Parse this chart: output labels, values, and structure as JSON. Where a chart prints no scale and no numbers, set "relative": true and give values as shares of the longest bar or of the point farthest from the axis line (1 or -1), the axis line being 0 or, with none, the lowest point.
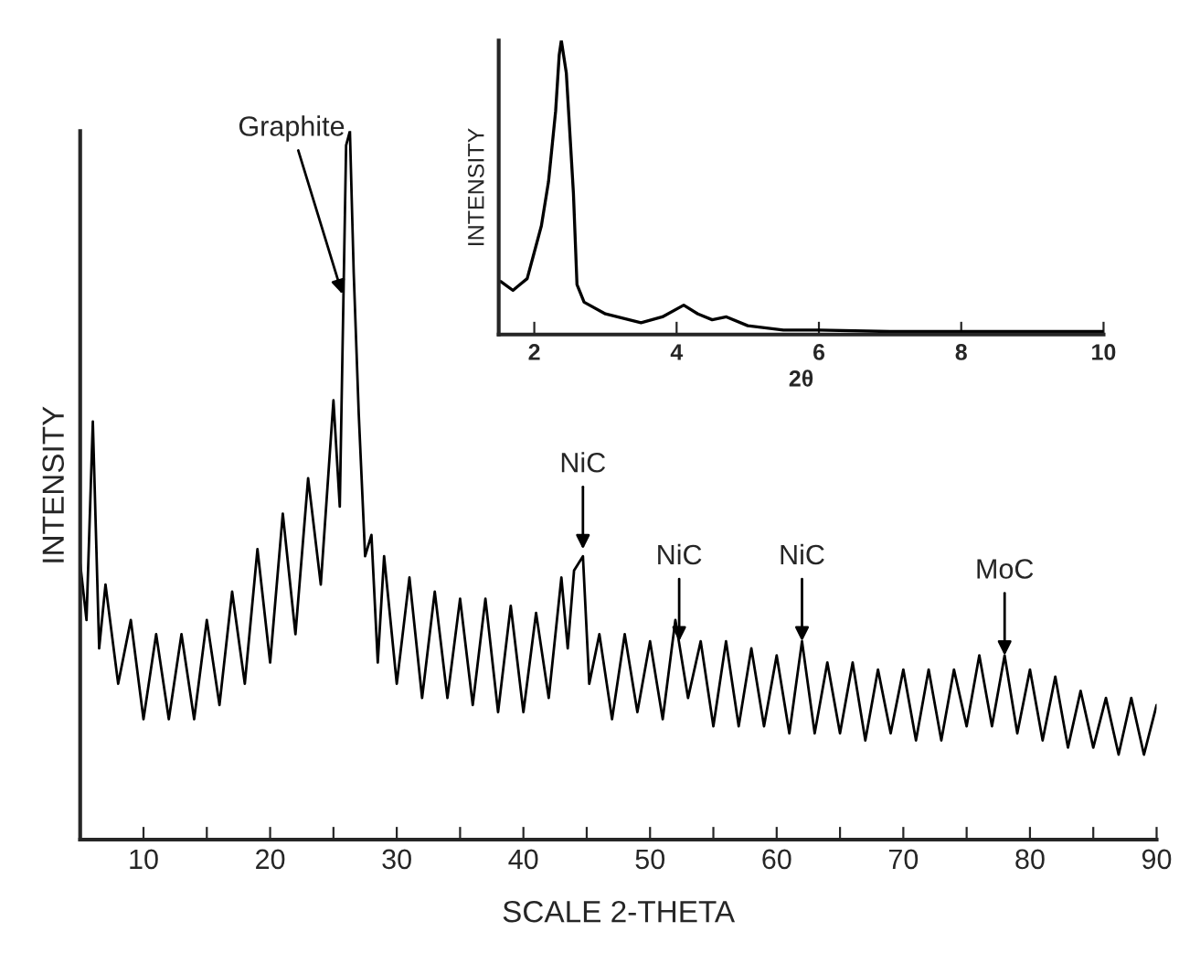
{
  "chart_data": [
    {
      "type": "line",
      "relative": true,
      "xlabel": "SCALE 2-THETA",
      "ylabel": "INTENSITY",
      "xlim": [
        5,
        90
      ],
      "xticks": [
        10,
        {
          "value": 15,
          "label": null
        },
        20,
        {
          "value": 25,
          "label": null
        },
        30,
        {
          "value": 35,
          "label": null
        },
        40,
        {
          "value": 45,
          "label": null
        },
        50,
        {
          "value": 55,
          "label": null
        },
        60,
        {
          "value": 65,
          "label": null
        },
        70,
        {
          "value": 75,
          "label": null
        },
        80,
        {
          "value": 85,
          "label": null
        },
        90
      ],
      "tick_labels": "x",
      "grid": false,
      "legend": false,
      "annotations": [
        {
          "text": "Graphite",
          "x": 25.7,
          "y": 0.77
        },
        {
          "text": "NiC",
          "x": 44.7,
          "y": 0.41
        },
        {
          "text": "NiC",
          "x": 52.3,
          "y": 0.28
        },
        {
          "text": "NiC",
          "x": 62,
          "y": 0.28
        },
        {
          "text": "MoC",
          "x": 78,
          "y": 0.26
        }
      ],
      "series": [
        {
          "color": "#000000",
          "x": [
            5,
            5.5,
            6,
            6.5,
            7,
            8,
            9,
            10,
            11,
            12,
            13,
            14,
            15,
            16,
            17,
            18,
            19,
            20,
            21,
            22,
            23,
            24,
            25,
            25.5,
            26,
            26.3,
            26.6,
            27,
            27.5,
            28,
            28.5,
            29,
            30,
            31,
            32,
            33,
            34,
            35,
            36,
            37,
            38,
            39,
            40,
            41,
            42,
            43,
            43.5,
            44,
            44.7,
            45.2,
            46,
            47,
            48,
            49,
            50,
            51,
            52,
            53,
            54,
            55,
            56,
            57,
            58,
            59,
            60,
            61,
            62,
            63,
            64,
            65,
            66,
            67,
            68,
            69,
            70,
            71,
            72,
            73,
            74,
            75,
            76,
            77,
            78,
            79,
            80,
            81,
            82,
            83,
            84,
            85,
            86,
            87,
            88,
            89,
            90
          ],
          "values": [
            0.39,
            0.31,
            0.59,
            0.27,
            0.36,
            0.22,
            0.31,
            0.17,
            0.29,
            0.17,
            0.29,
            0.17,
            0.31,
            0.19,
            0.35,
            0.22,
            0.41,
            0.25,
            0.46,
            0.29,
            0.51,
            0.36,
            0.62,
            0.47,
            0.98,
            1.0,
            0.8,
            0.6,
            0.4,
            0.43,
            0.25,
            0.4,
            0.22,
            0.37,
            0.2,
            0.35,
            0.2,
            0.34,
            0.19,
            0.34,
            0.18,
            0.33,
            0.18,
            0.32,
            0.2,
            0.37,
            0.27,
            0.38,
            0.4,
            0.22,
            0.29,
            0.17,
            0.29,
            0.18,
            0.28,
            0.17,
            0.31,
            0.2,
            0.28,
            0.16,
            0.28,
            0.16,
            0.27,
            0.16,
            0.26,
            0.15,
            0.28,
            0.15,
            0.25,
            0.15,
            0.25,
            0.14,
            0.24,
            0.15,
            0.24,
            0.14,
            0.24,
            0.14,
            0.24,
            0.16,
            0.26,
            0.16,
            0.26,
            0.15,
            0.24,
            0.14,
            0.23,
            0.13,
            0.21,
            0.13,
            0.2,
            0.12,
            0.2,
            0.12,
            0.19
          ]
        }
      ]
    },
    {
      "type": "line",
      "relative": true,
      "xlabel": "2θ",
      "ylabel": "INTENSITY",
      "xlim": [
        1.5,
        10
      ],
      "xticks": [
        2,
        4,
        6,
        8,
        10
      ],
      "tick_labels": "x",
      "grid": false,
      "legend": false,
      "series": [
        {
          "color": "#000000",
          "x": [
            1.53,
            1.7,
            1.8,
            1.9,
            2.0,
            2.1,
            2.2,
            2.3,
            2.35,
            2.38,
            2.45,
            2.55,
            2.6,
            2.7,
            3.0,
            3.5,
            3.8,
            4.1,
            4.3,
            4.5,
            4.7,
            5.0,
            5.5,
            6,
            7,
            8,
            10
          ],
          "values": [
            0.18,
            0.15,
            0.17,
            0.19,
            0.28,
            0.37,
            0.52,
            0.76,
            0.95,
            1.0,
            0.89,
            0.48,
            0.17,
            0.11,
            0.07,
            0.04,
            0.06,
            0.1,
            0.07,
            0.05,
            0.06,
            0.03,
            0.015,
            0.015,
            0.01,
            0.01,
            0.01
          ]
        }
      ]
    }
  ]
}
